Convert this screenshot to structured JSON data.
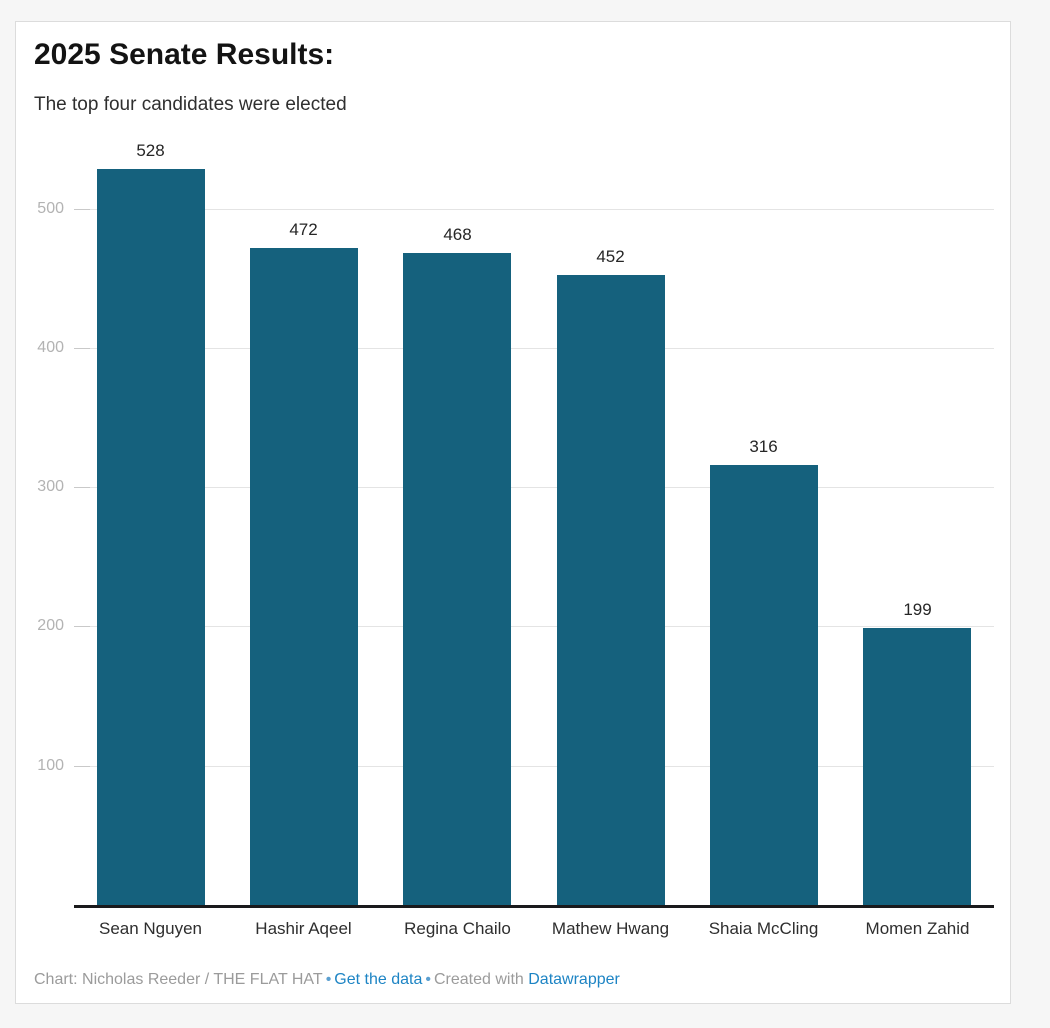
{
  "header": {
    "title": "2025 Senate Results:",
    "subtitle": "The top four candidates were elected"
  },
  "chart_data": {
    "type": "bar",
    "title": "2025 Senate Results:",
    "subtitle": "The top four candidates were elected",
    "categories": [
      "Sean Nguyen",
      "Hashir Aqeel",
      "Regina Chailo",
      "Mathew Hwang",
      "Shaia McCling",
      "Momen Zahid"
    ],
    "values": [
      528,
      472,
      468,
      452,
      316,
      199
    ],
    "value_labels": [
      "528",
      "472",
      "468",
      "452",
      "316",
      "199"
    ],
    "y_ticks": [
      100,
      200,
      300,
      400,
      500
    ],
    "ylim": [
      0,
      560
    ],
    "grid": true,
    "legend": "none",
    "bar_color": "#15617d",
    "gridline_color": "#e4e4e4",
    "axis_label_color": "#b3b3b3"
  },
  "footer": {
    "credit": "Chart: Nicholas Reeder / THE FLAT HAT",
    "separator": "•",
    "get_data_label": "Get the data",
    "created_with": "Created with",
    "datawrapper_label": "Datawrapper",
    "link_color": "#1d84c4",
    "separator_color": "#5b9fd0"
  }
}
